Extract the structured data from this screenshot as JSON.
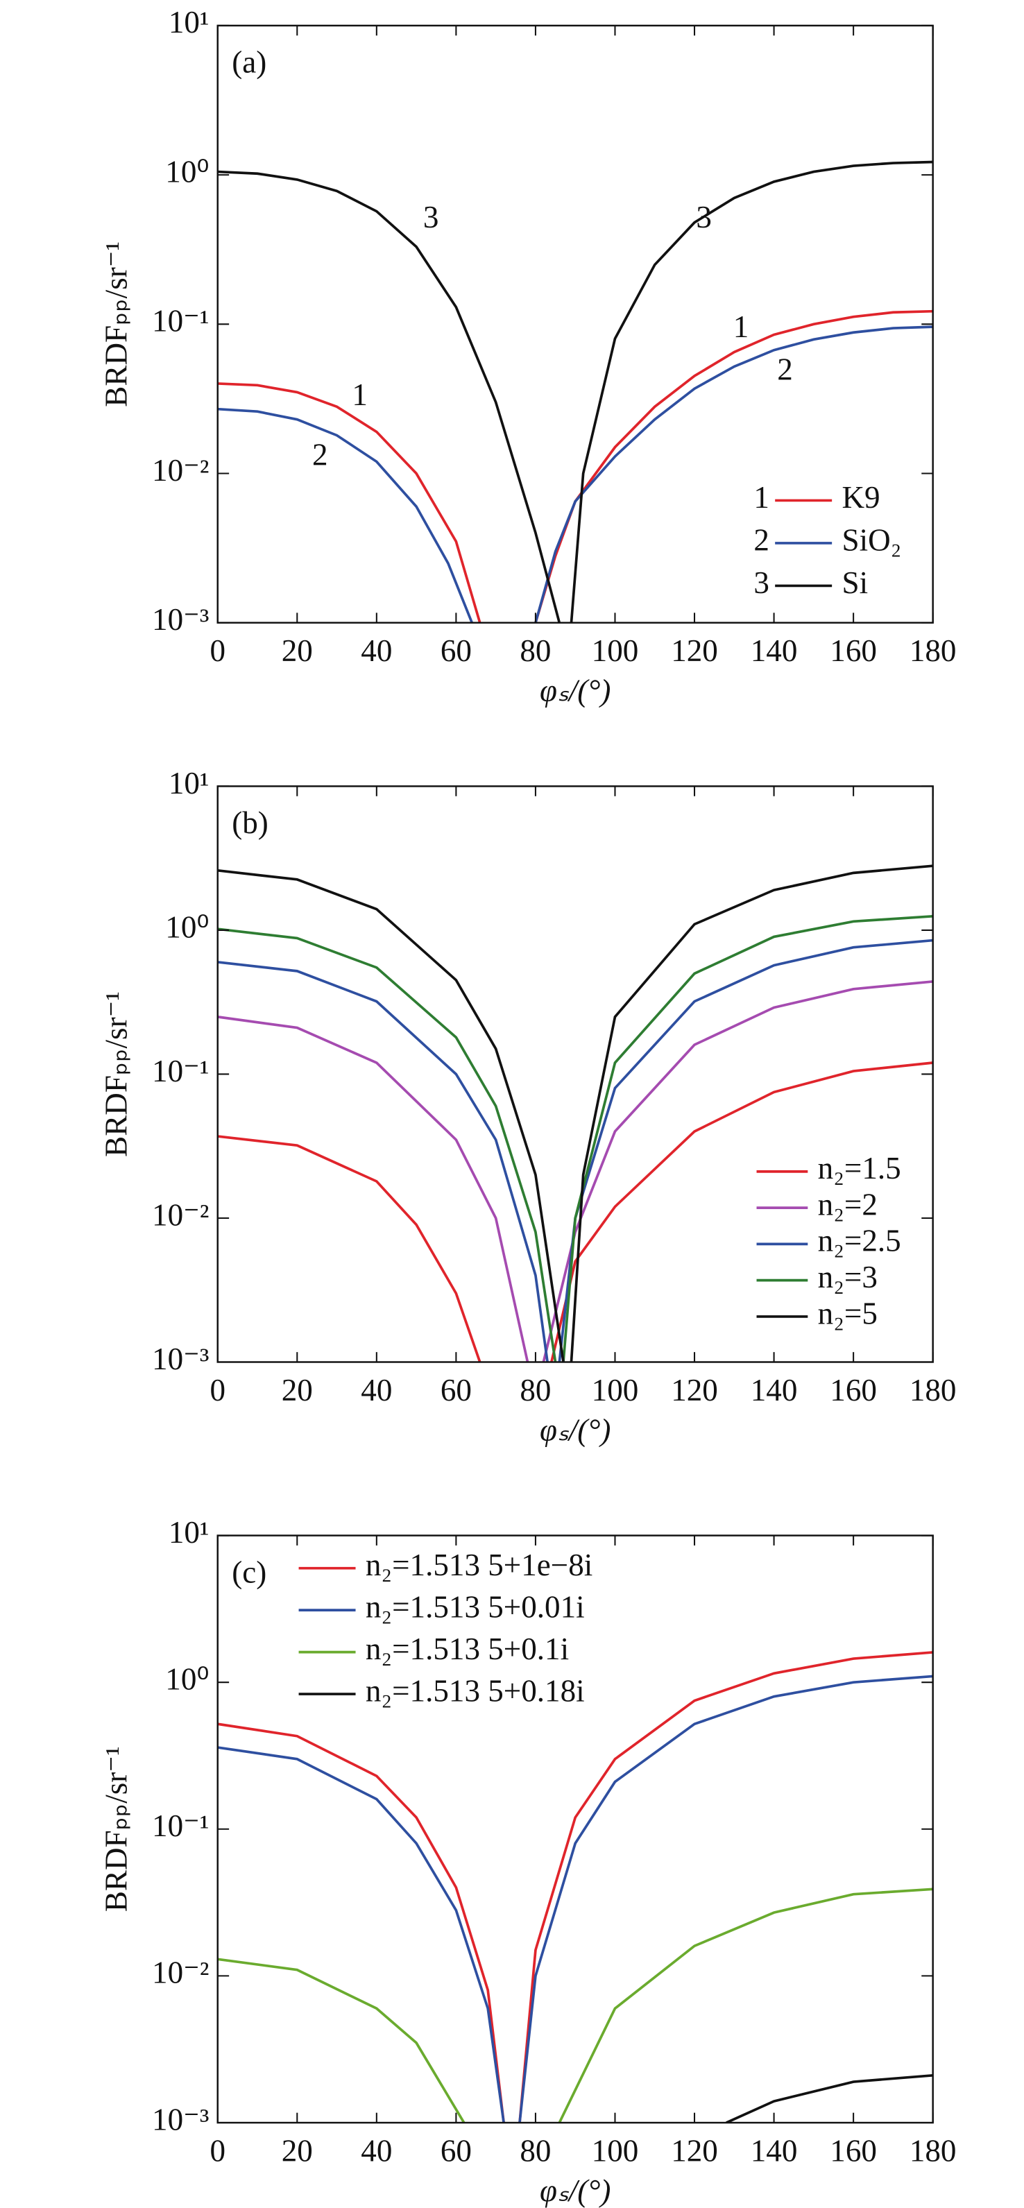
{
  "chart_data": [
    {
      "type": "line",
      "title": "(a)",
      "xlabel": "φₛ/(°)",
      "ylabel": "BRDFₚₚ/sr⁻¹",
      "log_y": true,
      "legend": "lower right",
      "xlim": [
        0,
        180
      ],
      "xticks": [
        0,
        20,
        40,
        60,
        80,
        100,
        120,
        140,
        160,
        180
      ],
      "ylim": [
        0.001,
        10
      ],
      "yticks": [
        {
          "value": 0.001,
          "label": "10⁻³"
        },
        {
          "value": 0.01,
          "label": "10⁻²"
        },
        {
          "value": 0.1,
          "label": "10⁻¹"
        },
        {
          "value": 1,
          "label": "10⁰"
        },
        {
          "value": 10,
          "label": "10¹"
        }
      ],
      "legend_numbers": [
        "1",
        "2",
        "3"
      ],
      "annotations": [
        "3",
        "3",
        "1",
        "2",
        "1",
        "2"
      ],
      "series": [
        {
          "name": "K9",
          "color": "#e0242b",
          "x": [
            0,
            10,
            20,
            30,
            40,
            50,
            60,
            66,
            null,
            80,
            85,
            90,
            100,
            110,
            120,
            130,
            140,
            150,
            160,
            170,
            180
          ],
          "values": [
            0.04,
            0.039,
            0.035,
            0.028,
            0.019,
            0.01,
            0.0035,
            0.001,
            null,
            0.001,
            0.0028,
            0.0065,
            0.015,
            0.028,
            0.045,
            0.065,
            0.085,
            0.1,
            0.112,
            0.12,
            0.122
          ]
        },
        {
          "name": "SiO₂",
          "color": "#2e4fa0",
          "x": [
            0,
            10,
            20,
            30,
            40,
            50,
            58,
            64,
            null,
            80,
            85,
            90,
            100,
            110,
            120,
            130,
            140,
            150,
            160,
            170,
            180
          ],
          "values": [
            0.027,
            0.026,
            0.023,
            0.018,
            0.012,
            0.006,
            0.0025,
            0.001,
            null,
            0.001,
            0.003,
            0.0065,
            0.013,
            0.023,
            0.037,
            0.052,
            0.067,
            0.079,
            0.088,
            0.094,
            0.096
          ]
        },
        {
          "name": "Si",
          "color": "#111111",
          "x": [
            0,
            10,
            20,
            30,
            40,
            50,
            60,
            70,
            80,
            86,
            null,
            89,
            92,
            100,
            110,
            120,
            130,
            140,
            150,
            160,
            170,
            180
          ],
          "values": [
            1.05,
            1.02,
            0.93,
            0.78,
            0.57,
            0.33,
            0.13,
            0.03,
            0.004,
            0.001,
            null,
            0.001,
            0.01,
            0.08,
            0.25,
            0.48,
            0.7,
            0.9,
            1.05,
            1.15,
            1.2,
            1.22
          ]
        }
      ]
    },
    {
      "type": "line",
      "title": "(b)",
      "xlabel": "φₛ/(°)",
      "ylabel": "BRDFₚₚ/sr⁻¹",
      "log_y": true,
      "legend": "lower right",
      "xlim": [
        0,
        180
      ],
      "xticks": [
        0,
        20,
        40,
        60,
        80,
        100,
        120,
        140,
        160,
        180
      ],
      "ylim": [
        0.001,
        10
      ],
      "yticks": [
        {
          "value": 0.001,
          "label": "10⁻³"
        },
        {
          "value": 0.01,
          "label": "10⁻²"
        },
        {
          "value": 0.1,
          "label": "10⁻¹"
        },
        {
          "value": 1,
          "label": "10⁰"
        },
        {
          "value": 10,
          "label": "10¹"
        }
      ],
      "series": [
        {
          "name": "n₂=1.5",
          "color": "#e0242b",
          "x": [
            0,
            20,
            40,
            50,
            60,
            66,
            null,
            84,
            90,
            100,
            120,
            140,
            160,
            180
          ],
          "values": [
            0.037,
            0.032,
            0.018,
            0.009,
            0.003,
            0.001,
            null,
            0.001,
            0.005,
            0.012,
            0.04,
            0.075,
            0.105,
            0.12
          ]
        },
        {
          "name": "n₂=2",
          "color": "#a54bb0",
          "x": [
            0,
            20,
            40,
            60,
            70,
            78,
            null,
            82,
            90,
            100,
            120,
            140,
            160,
            180
          ],
          "values": [
            0.25,
            0.21,
            0.12,
            0.035,
            0.01,
            0.001,
            null,
            0.001,
            0.008,
            0.04,
            0.16,
            0.29,
            0.39,
            0.44
          ]
        },
        {
          "name": "n₂=2.5",
          "color": "#2e4fa0",
          "x": [
            0,
            20,
            40,
            60,
            70,
            80,
            83,
            null,
            86,
            90,
            100,
            120,
            140,
            160,
            180
          ],
          "values": [
            0.6,
            0.52,
            0.32,
            0.1,
            0.035,
            0.004,
            0.001,
            null,
            0.001,
            0.01,
            0.08,
            0.32,
            0.57,
            0.76,
            0.85
          ]
        },
        {
          "name": "n₂=3",
          "color": "#2e7d32",
          "x": [
            0,
            20,
            40,
            60,
            70,
            80,
            85,
            null,
            87,
            90,
            100,
            120,
            140,
            160,
            180
          ],
          "values": [
            1.02,
            0.88,
            0.55,
            0.18,
            0.06,
            0.008,
            0.001,
            null,
            0.001,
            0.01,
            0.12,
            0.5,
            0.9,
            1.15,
            1.25
          ]
        },
        {
          "name": "n₂=5",
          "color": "#111111",
          "x": [
            0,
            20,
            40,
            60,
            70,
            80,
            87,
            null,
            89,
            92,
            100,
            120,
            140,
            160,
            180
          ],
          "values": [
            2.6,
            2.25,
            1.4,
            0.45,
            0.15,
            0.02,
            0.001,
            null,
            0.001,
            0.02,
            0.25,
            1.1,
            1.9,
            2.5,
            2.8
          ]
        }
      ]
    },
    {
      "type": "line",
      "title": "(c)",
      "xlabel": "φₛ/(°)",
      "ylabel": "BRDFₚₚ/sr⁻¹",
      "log_y": true,
      "legend": "upper left",
      "xlim": [
        0,
        180
      ],
      "xticks": [
        0,
        20,
        40,
        60,
        80,
        100,
        120,
        140,
        160,
        180
      ],
      "ylim": [
        0.001,
        10
      ],
      "yticks": [
        {
          "value": 0.001,
          "label": "10⁻³"
        },
        {
          "value": 0.01,
          "label": "10⁻²"
        },
        {
          "value": 0.1,
          "label": "10⁻¹"
        },
        {
          "value": 1,
          "label": "10⁰"
        },
        {
          "value": 10,
          "label": "10¹"
        }
      ],
      "series": [
        {
          "name": "n₂=1.513 5+1e−8i",
          "color": "#e0242b",
          "x": [
            0,
            20,
            40,
            50,
            60,
            68,
            72,
            null,
            76,
            80,
            90,
            100,
            120,
            140,
            160,
            180
          ],
          "values": [
            0.52,
            0.43,
            0.23,
            0.12,
            0.04,
            0.008,
            0.001,
            null,
            0.001,
            0.015,
            0.12,
            0.3,
            0.75,
            1.15,
            1.45,
            1.6
          ]
        },
        {
          "name": "n₂=1.513 5+0.01i",
          "color": "#2e4fa0",
          "x": [
            0,
            20,
            40,
            50,
            60,
            68,
            72,
            null,
            76,
            80,
            90,
            100,
            120,
            140,
            160,
            180
          ],
          "values": [
            0.36,
            0.3,
            0.16,
            0.08,
            0.028,
            0.006,
            0.001,
            null,
            0.001,
            0.01,
            0.08,
            0.21,
            0.52,
            0.8,
            1.0,
            1.1
          ]
        },
        {
          "name": "n₂=1.513 5+0.1i",
          "color": "#6aab2e",
          "x": [
            0,
            20,
            40,
            50,
            62,
            null,
            86,
            100,
            120,
            140,
            160,
            180
          ],
          "values": [
            0.013,
            0.011,
            0.006,
            0.0035,
            0.001,
            null,
            0.001,
            0.006,
            0.016,
            0.027,
            0.036,
            0.039
          ]
        },
        {
          "name": "n₂=1.513 5+0.18i",
          "color": "#111111",
          "x": [
            128,
            140,
            160,
            180
          ],
          "values": [
            0.001,
            0.0014,
            0.0019,
            0.0021
          ]
        }
      ]
    }
  ]
}
